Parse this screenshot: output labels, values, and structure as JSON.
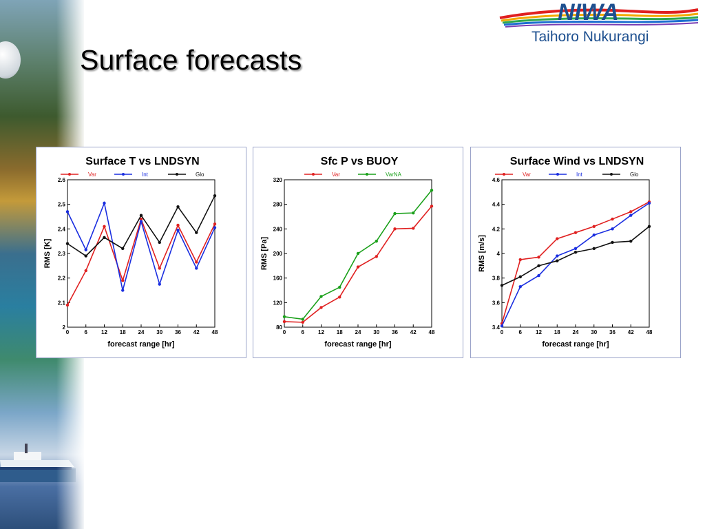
{
  "slide": {
    "title": "Surface forecasts"
  },
  "logo": {
    "brand": "NIWA",
    "subtitle": "Taihoro Nukurangi"
  },
  "colors": {
    "Var": "#e02020",
    "Int": "#1a2ee0",
    "Glo": "#111111",
    "VarNA": "#1aa01a"
  },
  "chart_data": [
    {
      "type": "line",
      "title": "Surface T vs LNDSYN",
      "xlabel": "forecast range [hr]",
      "ylabel": "RMS [K]",
      "x": [
        0,
        6,
        12,
        18,
        24,
        30,
        36,
        42,
        48
      ],
      "ylim": [
        2.0,
        2.6
      ],
      "yticks": [
        2,
        2.1,
        2.2,
        2.3,
        2.4,
        2.5,
        2.6
      ],
      "ytick_labels": [
        "2",
        "2.1",
        "2.2",
        "2.3",
        "2.4",
        "2.5",
        "2.6"
      ],
      "legend": "top",
      "grid": false,
      "series": [
        {
          "name": "Var",
          "color": "#e02020",
          "values": [
            2.09,
            2.23,
            2.41,
            2.19,
            2.44,
            2.24,
            2.415,
            2.265,
            2.42
          ]
        },
        {
          "name": "Int",
          "color": "#1a2ee0",
          "values": [
            2.47,
            2.315,
            2.505,
            2.15,
            2.43,
            2.175,
            2.395,
            2.24,
            2.405
          ]
        },
        {
          "name": "Glo",
          "color": "#111111",
          "values": [
            2.34,
            2.29,
            2.365,
            2.32,
            2.455,
            2.345,
            2.49,
            2.385,
            2.535
          ]
        }
      ]
    },
    {
      "type": "line",
      "title": "Sfc P vs BUOY",
      "xlabel": "forecast range [hr]",
      "ylabel": "RMS [Pa]",
      "x": [
        0,
        6,
        12,
        18,
        24,
        30,
        36,
        42,
        48
      ],
      "ylim": [
        80,
        320
      ],
      "yticks": [
        80,
        120,
        160,
        200,
        240,
        280,
        320
      ],
      "ytick_labels": [
        "80",
        "120",
        "160",
        "200",
        "240",
        "280",
        "320"
      ],
      "legend": "top",
      "grid": false,
      "series": [
        {
          "name": "Var",
          "color": "#e02020",
          "values": [
            89,
            88,
            112,
            129,
            178,
            195,
            240,
            241,
            277
          ]
        },
        {
          "name": "VarNA",
          "color": "#1aa01a",
          "values": [
            97,
            93,
            130,
            145,
            200,
            220,
            265,
            266,
            303
          ]
        }
      ]
    },
    {
      "type": "line",
      "title": "Surface Wind vs LNDSYN",
      "xlabel": "forecast range [hr]",
      "ylabel": "RMS [m/s]",
      "x": [
        0,
        6,
        12,
        18,
        24,
        30,
        36,
        42,
        48
      ],
      "ylim": [
        3.4,
        4.6
      ],
      "yticks": [
        3.4,
        3.6,
        3.8,
        4,
        4.2,
        4.4,
        4.6
      ],
      "ytick_labels": [
        "3.4",
        "3.6",
        "3.8",
        "4",
        "4.2",
        "4.4",
        "4.6"
      ],
      "legend": "top",
      "grid": false,
      "series": [
        {
          "name": "Var",
          "color": "#e02020",
          "values": [
            3.43,
            3.95,
            3.97,
            4.12,
            4.17,
            4.22,
            4.28,
            4.34,
            4.42
          ]
        },
        {
          "name": "Int",
          "color": "#1a2ee0",
          "values": [
            3.41,
            3.73,
            3.82,
            3.98,
            4.04,
            4.15,
            4.2,
            4.31,
            4.41
          ]
        },
        {
          "name": "Glo",
          "color": "#111111",
          "values": [
            3.74,
            3.81,
            3.9,
            3.94,
            4.01,
            4.04,
            4.09,
            4.1,
            4.22
          ]
        }
      ]
    }
  ]
}
